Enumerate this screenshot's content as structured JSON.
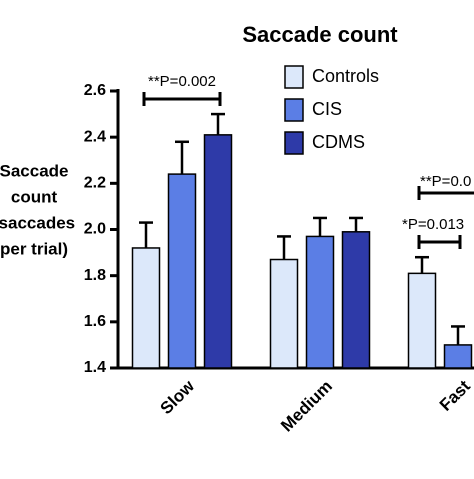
{
  "chart_data": {
    "type": "bar",
    "title": "Saccade count",
    "ylabel": [
      "Saccade",
      "count",
      "(saccades",
      "per trial)"
    ],
    "categories": [
      "Slow",
      "Medium",
      "Fast"
    ],
    "series": [
      {
        "name": "Controls",
        "color": "#dce8fa",
        "values": [
          1.92,
          1.87,
          1.81
        ],
        "errors": [
          0.11,
          0.1,
          0.07
        ]
      },
      {
        "name": "CIS",
        "color": "#5b7ee5",
        "values": [
          2.24,
          1.97,
          1.5
        ],
        "errors": [
          0.14,
          0.08,
          0.08
        ]
      },
      {
        "name": "CDMS",
        "color": "#2e3aa8",
        "values": [
          2.41,
          1.99,
          null
        ],
        "errors": [
          0.09,
          0.06,
          null
        ]
      }
    ],
    "ylim": [
      1.4,
      2.6
    ],
    "yticks": [
      {
        "value": 1.4,
        "label": "1.4"
      },
      {
        "value": 1.6,
        "label": "1.6"
      },
      {
        "value": 1.8,
        "label": "1.8"
      },
      {
        "value": 2.0,
        "label": "2.0"
      },
      {
        "value": 2.2,
        "label": "2.2"
      },
      {
        "value": 2.4,
        "label": "2.4"
      },
      {
        "value": 2.6,
        "label": "2.6"
      }
    ],
    "annotations": [
      "**P=0.002",
      "**P=0.0",
      "*P=0.013"
    ]
  }
}
